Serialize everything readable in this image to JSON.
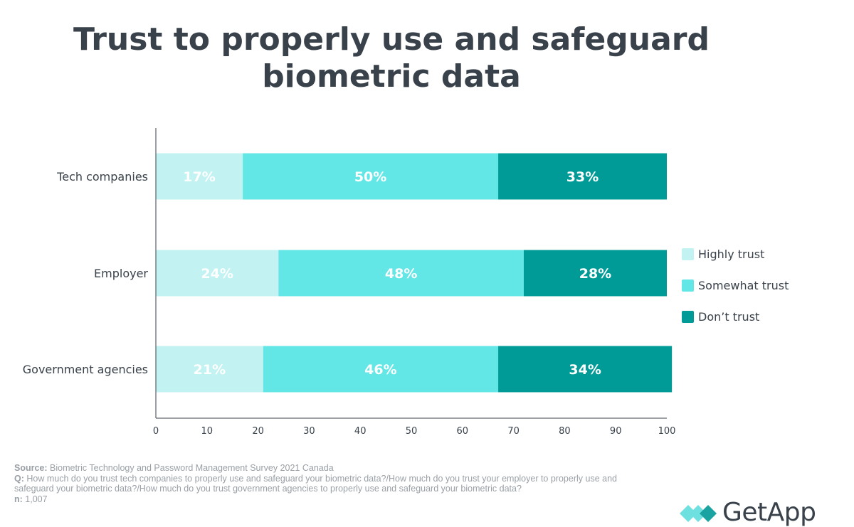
{
  "chart_data": {
    "type": "bar",
    "orientation": "horizontal",
    "stacked": true,
    "title": "Trust to properly use and safeguard biometric data",
    "categories": [
      "Tech companies",
      "Employer",
      "Government agencies"
    ],
    "series": [
      {
        "name": "Highly trust",
        "values": [
          17,
          24,
          21
        ],
        "labels": [
          "17%",
          "24%",
          "21%"
        ],
        "color": "#c2f2f2"
      },
      {
        "name": "Somewhat trust",
        "values": [
          50,
          48,
          46
        ],
        "labels": [
          "50%",
          "48%",
          "46%"
        ],
        "color": "#62e6e6"
      },
      {
        "name": "Don’t trust",
        "values": [
          33,
          28,
          34
        ],
        "labels": [
          "33%",
          "28%",
          "34%"
        ],
        "color": "#009b96"
      }
    ],
    "xlim": [
      0,
      100
    ],
    "xticks": [
      0,
      10,
      20,
      30,
      40,
      50,
      60,
      70,
      80,
      90,
      100
    ],
    "xlabel": "",
    "ylabel": "",
    "grid": false,
    "legend_position": "right"
  },
  "notes": {
    "source_label": "Source:",
    "source_text": "Biometric Technology  and Password Management Survey 2021 Canada",
    "question_label": "Q:",
    "question_text": "How much do you trust tech companies to properly use and safeguard your biometric data?/How much do you trust your employer to properly use and safeguard your biometric data?/How much do you trust government agencies to properly use and safeguard your biometric data?",
    "n_label": "n:",
    "n_text": "1,007"
  },
  "logo": {
    "text": "GetApp",
    "color_light": "#6fe0e0",
    "color_dark": "#1aa3a0"
  }
}
